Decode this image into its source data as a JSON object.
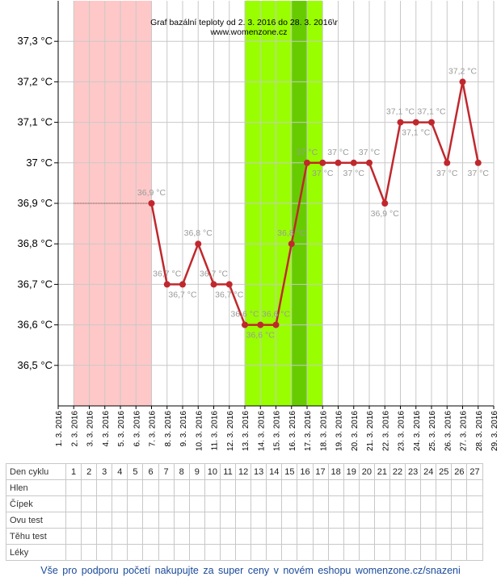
{
  "chart_data": {
    "type": "line",
    "title": "Graf bazální teploty od 2. 3. 2016 do 28. 3. 2016\\r",
    "subtitle": "www.womenzone.cz",
    "y_ticks": [
      "36,5 °C",
      "36,6 °C",
      "36,7 °C",
      "36,8 °C",
      "36,9 °C",
      "37 °C",
      "37,1 °C",
      "37,2 °C",
      "37,3 °C"
    ],
    "y_tick_values": [
      36.5,
      36.6,
      36.7,
      36.8,
      36.9,
      37.0,
      37.1,
      37.2,
      37.3
    ],
    "ylim": [
      36.4,
      37.4
    ],
    "x_ticks": [
      "1. 3. 2016",
      "2. 3. 2016",
      "3. 3. 2016",
      "4. 3. 2016",
      "5. 3. 2016",
      "6. 3. 2016",
      "7. 3. 2016",
      "8. 3. 2016",
      "9. 3. 2016",
      "10. 3. 2016",
      "11. 3. 2016",
      "12. 3. 2016",
      "13. 3. 2016",
      "14. 3. 2016",
      "15. 3. 2016",
      "16. 3. 2016",
      "17. 3. 2016",
      "18. 3. 2016",
      "19. 3. 2016",
      "20. 3. 2016",
      "21. 3. 2016",
      "22. 3. 2016",
      "23. 3. 2016",
      "24. 3. 2016",
      "25. 3. 2016",
      "26. 3. 2016",
      "27. 3. 2016",
      "28. 3. 2016",
      "29. 3. 2016"
    ],
    "baseline_value": 36.9,
    "baseline_range": [
      "2. 3. 2016",
      "7. 3. 2016"
    ],
    "series": [
      {
        "x": [
          "7. 3. 2016",
          "8. 3. 2016",
          "9. 3. 2016",
          "10. 3. 2016",
          "11. 3. 2016",
          "12. 3. 2016",
          "13. 3. 2016",
          "14. 3. 2016",
          "15. 3. 2016",
          "16. 3. 2016",
          "17. 3. 2016",
          "18. 3. 2016",
          "19. 3. 2016",
          "20. 3. 2016",
          "21. 3. 2016",
          "22. 3. 2016",
          "23. 3. 2016",
          "24. 3. 2016",
          "25. 3. 2016",
          "26. 3. 2016",
          "27. 3. 2016",
          "28. 3. 2016"
        ],
        "values": [
          36.9,
          36.7,
          36.7,
          36.8,
          36.7,
          36.7,
          36.6,
          36.6,
          36.6,
          36.8,
          37.0,
          37.0,
          37.0,
          37.0,
          37.0,
          36.9,
          37.1,
          37.1,
          37.1,
          37.0,
          37.2,
          37.0
        ],
        "labels": [
          "36,9 °C",
          "36,7 °C",
          "36,7 °C",
          "36,8 °C",
          "36,7 °C",
          "36,7 °C",
          "36,6 °C",
          "36,6 °C",
          "36,6 °C",
          "36,8 °C",
          "37 °C",
          "37 °C",
          "37 °C",
          "37 °C",
          "37 °C",
          "36,9 °C",
          "37,1 °C",
          "37,1 °C",
          "37,1 °C",
          "37 °C",
          "37,2 °C",
          "37 °C"
        ],
        "label_pos": [
          "above",
          "above",
          "below",
          "above",
          "above",
          "below",
          "above",
          "below",
          "above",
          "above",
          "above",
          "below",
          "above",
          "below",
          "above",
          "below",
          "above",
          "below",
          "above",
          "below",
          "above",
          "below"
        ],
        "color": "#c0282d"
      }
    ],
    "bands": [
      {
        "from": "2. 3. 2016",
        "to": "7. 3. 2016",
        "color": "#ffc8c8"
      },
      {
        "from": "13. 3. 2016",
        "to": "18. 3. 2016",
        "color": "#99ff00"
      },
      {
        "from": "16. 3. 2016",
        "to": "17. 3. 2016",
        "color": "#66cc00"
      }
    ],
    "grid": true
  },
  "table": {
    "days_label": "Den cyklu",
    "days": [
      "1",
      "2",
      "3",
      "4",
      "5",
      "6",
      "7",
      "8",
      "9",
      "10",
      "11",
      "12",
      "13",
      "14",
      "15",
      "16",
      "17",
      "18",
      "19",
      "20",
      "21",
      "22",
      "23",
      "24",
      "25",
      "26",
      "27"
    ],
    "rows": [
      "Hlen",
      "Čípek",
      "Ovu test",
      "Těhu test",
      "Léky"
    ]
  },
  "footer": "Vše pro podporu početí nakupujte za super ceny v novém eshopu womenzone.cz/snazeni"
}
